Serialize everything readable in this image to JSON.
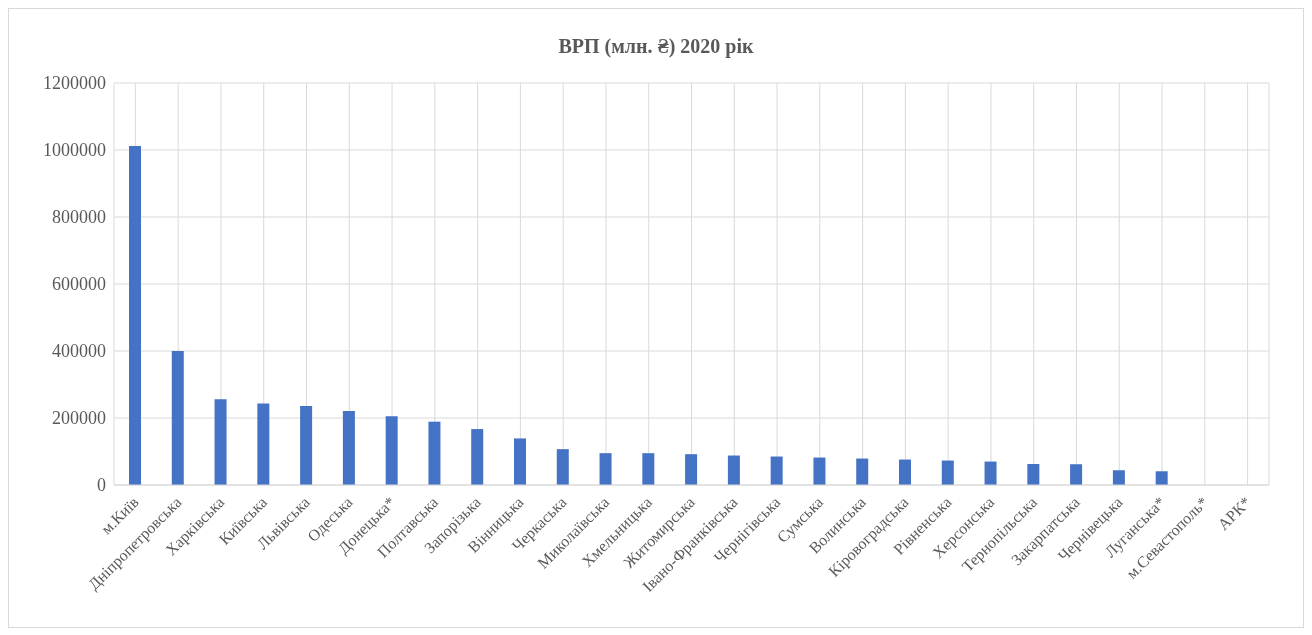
{
  "chart_data": {
    "type": "bar",
    "title": "ВРП (млн. ₴) 2020 рік",
    "categories": [
      "м.Київ",
      "Дніпропетровська",
      "Харківська",
      "Київська",
      "Львівська",
      "Одеська",
      "Донецька*",
      "Полтавська",
      "Запорізька",
      "Вінницька",
      "Черкаська",
      "Миколаївська",
      "Хмельницька",
      "Житомирська",
      "Івано-Франківська",
      "Чернігівська",
      "Сумська",
      "Волинська",
      "Кіровоградська",
      "Рівненська",
      "Херсонська",
      "Тернопільська",
      "Закарпатська",
      "Чернівецька",
      "Луганська*",
      "м.Севастополь*",
      "АРК*"
    ],
    "values": [
      1012000,
      400000,
      256000,
      243000,
      236000,
      221000,
      205000,
      189000,
      167000,
      139000,
      107000,
      95000,
      95000,
      92000,
      88000,
      85000,
      82000,
      79000,
      76000,
      73000,
      70000,
      63000,
      62000,
      44000,
      41000,
      null,
      null
    ],
    "color": "#4472c4",
    "ylim": [
      0,
      1200000
    ],
    "yticks": [
      0,
      200000,
      400000,
      600000,
      800000,
      1000000,
      1200000
    ],
    "grid": true
  }
}
